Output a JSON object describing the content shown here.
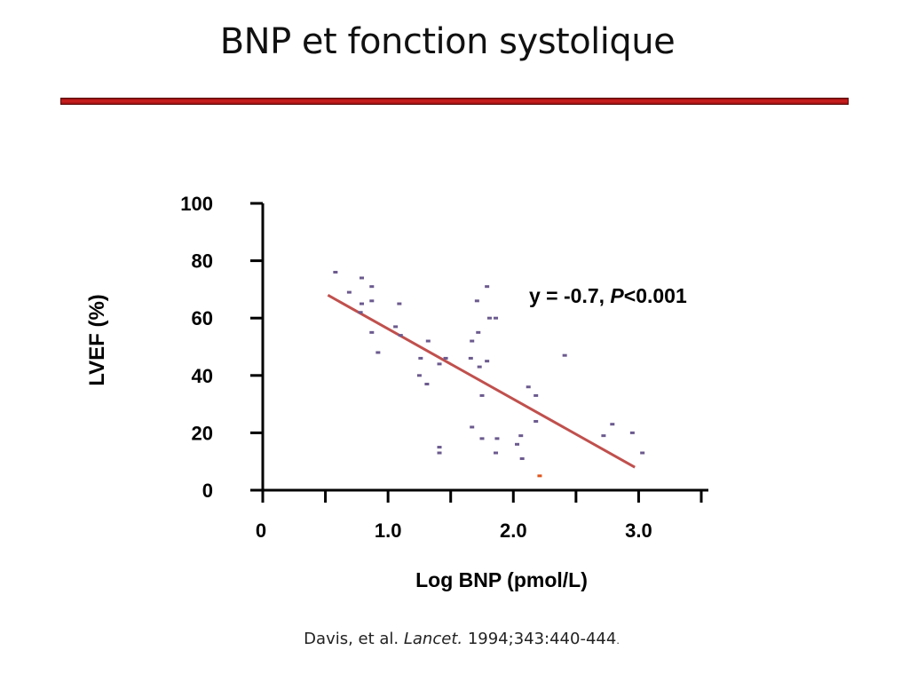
{
  "slide": {
    "title": "BNP et fonction systolique",
    "rule_color": "#c0181c"
  },
  "citation": {
    "authors": "Davis, et al. ",
    "journal": "Lancet.",
    "details": " 1994;343:440-444",
    "trailing": "."
  },
  "annotation": {
    "prefix": "y = -0.7, ",
    "p_symbol": "P",
    "suffix": "<0.001"
  },
  "chart_data": {
    "type": "scatter",
    "title": "",
    "xlabel": "Log BNP (pmol/L)",
    "ylabel": "LVEF (%)",
    "xlim": [
      0,
      3.5
    ],
    "ylim": [
      0,
      100
    ],
    "x_ticks": [
      0,
      0.5,
      1.0,
      1.5,
      2.0,
      2.5,
      3.0,
      3.5
    ],
    "x_tick_labels": [
      {
        "value": 0,
        "label": "0"
      },
      {
        "value": 1.0,
        "label": "1.0"
      },
      {
        "value": 2.0,
        "label": "2.0"
      },
      {
        "value": 3.0,
        "label": "3.0"
      }
    ],
    "y_ticks": [
      {
        "value": 0,
        "label": "0"
      },
      {
        "value": 20,
        "label": "20"
      },
      {
        "value": 40,
        "label": "40"
      },
      {
        "value": 60,
        "label": "60"
      },
      {
        "value": 80,
        "label": "80"
      },
      {
        "value": 100,
        "label": "100"
      }
    ],
    "grid": false,
    "point_color": "#6b5a8e",
    "outlier_color": "#e0541c",
    "regression_color": "#c0504d",
    "regression_line": {
      "x": [
        0.52,
        2.97
      ],
      "y": [
        68,
        8
      ]
    },
    "points": [
      {
        "x": 0.58,
        "y": 76
      },
      {
        "x": 0.69,
        "y": 69
      },
      {
        "x": 0.79,
        "y": 74
      },
      {
        "x": 0.79,
        "y": 65
      },
      {
        "x": 0.78,
        "y": 62
      },
      {
        "x": 0.87,
        "y": 71
      },
      {
        "x": 0.87,
        "y": 66
      },
      {
        "x": 0.87,
        "y": 55
      },
      {
        "x": 0.92,
        "y": 48
      },
      {
        "x": 1.06,
        "y": 57
      },
      {
        "x": 1.09,
        "y": 65
      },
      {
        "x": 1.1,
        "y": 54
      },
      {
        "x": 1.25,
        "y": 40
      },
      {
        "x": 1.26,
        "y": 46
      },
      {
        "x": 1.31,
        "y": 37
      },
      {
        "x": 1.32,
        "y": 52
      },
      {
        "x": 1.41,
        "y": 44
      },
      {
        "x": 1.41,
        "y": 15
      },
      {
        "x": 1.41,
        "y": 13
      },
      {
        "x": 1.46,
        "y": 46
      },
      {
        "x": 1.66,
        "y": 46
      },
      {
        "x": 1.67,
        "y": 52
      },
      {
        "x": 1.67,
        "y": 22
      },
      {
        "x": 1.71,
        "y": 66
      },
      {
        "x": 1.72,
        "y": 55
      },
      {
        "x": 1.73,
        "y": 43
      },
      {
        "x": 1.75,
        "y": 33
      },
      {
        "x": 1.75,
        "y": 18
      },
      {
        "x": 1.79,
        "y": 71
      },
      {
        "x": 1.79,
        "y": 45
      },
      {
        "x": 1.81,
        "y": 60
      },
      {
        "x": 1.86,
        "y": 60
      },
      {
        "x": 1.86,
        "y": 13
      },
      {
        "x": 1.87,
        "y": 18
      },
      {
        "x": 2.03,
        "y": 16
      },
      {
        "x": 2.06,
        "y": 19
      },
      {
        "x": 2.07,
        "y": 11
      },
      {
        "x": 2.12,
        "y": 36
      },
      {
        "x": 2.18,
        "y": 33
      },
      {
        "x": 2.18,
        "y": 24
      },
      {
        "x": 2.41,
        "y": 47
      },
      {
        "x": 2.72,
        "y": 19
      },
      {
        "x": 2.79,
        "y": 23
      },
      {
        "x": 2.95,
        "y": 20
      },
      {
        "x": 3.03,
        "y": 13
      }
    ],
    "outliers": [
      {
        "x": 2.21,
        "y": 5
      }
    ]
  }
}
